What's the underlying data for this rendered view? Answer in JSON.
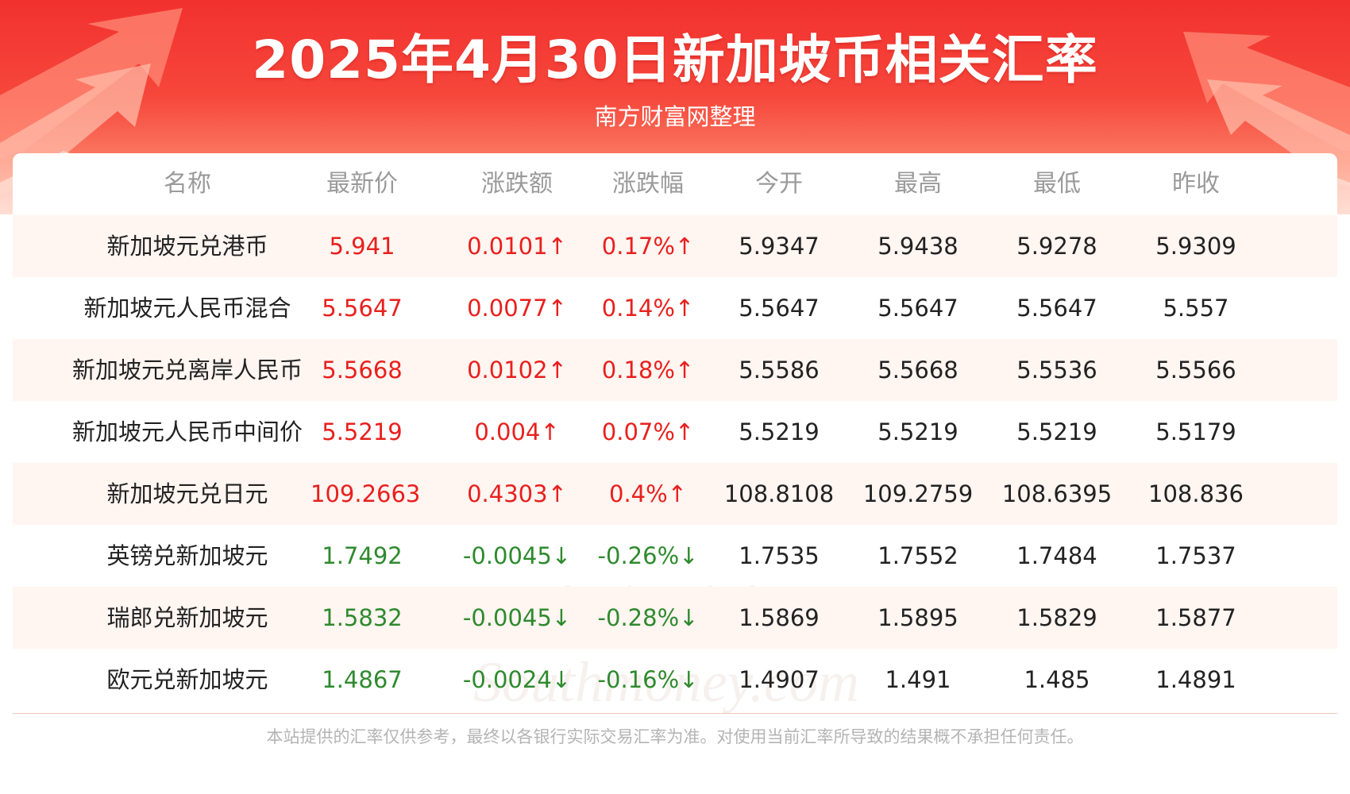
{
  "header": {
    "title": "2025年4月30日新加坡币相关汇率",
    "subtitle": "南方财富网整理"
  },
  "table": {
    "columns": [
      "名称",
      "最新价",
      "涨跌额",
      "涨跌幅",
      "今开",
      "最高",
      "最低",
      "昨收"
    ],
    "rows": [
      {
        "name": "新加坡元兑港币",
        "latest": "5.941",
        "change": "0.0101↑",
        "pct": "0.17%↑",
        "open": "5.9347",
        "high": "5.9438",
        "low": "5.9278",
        "prev": "5.9309",
        "trend": "up"
      },
      {
        "name": "新加坡元人民币混合",
        "latest": "5.5647",
        "change": "0.0077↑",
        "pct": "0.14%↑",
        "open": "5.5647",
        "high": "5.5647",
        "low": "5.5647",
        "prev": "5.557",
        "trend": "up"
      },
      {
        "name": "新加坡元兑离岸人民币",
        "latest": "5.5668",
        "change": "0.0102↑",
        "pct": "0.18%↑",
        "open": "5.5586",
        "high": "5.5668",
        "low": "5.5536",
        "prev": "5.5566",
        "trend": "up"
      },
      {
        "name": "新加坡元人民币中间价",
        "latest": "5.5219",
        "change": "0.004↑",
        "pct": "0.07%↑",
        "open": "5.5219",
        "high": "5.5219",
        "low": "5.5219",
        "prev": "5.5179",
        "trend": "up"
      },
      {
        "name": "新加坡元兑日元",
        "latest": "109.2663",
        "change": "0.4303↑",
        "pct": "0.4%↑",
        "open": "108.8108",
        "high": "109.2759",
        "low": "108.6395",
        "prev": "108.836",
        "trend": "up"
      },
      {
        "name": "英镑兑新加坡元",
        "latest": "1.7492",
        "change": "-0.0045↓",
        "pct": "-0.26%↓",
        "open": "1.7535",
        "high": "1.7552",
        "low": "1.7484",
        "prev": "1.7537",
        "trend": "down"
      },
      {
        "name": "瑞郎兑新加坡元",
        "latest": "1.5832",
        "change": "-0.0045↓",
        "pct": "-0.28%↓",
        "open": "1.5869",
        "high": "1.5895",
        "low": "1.5829",
        "prev": "1.5877",
        "trend": "down"
      },
      {
        "name": "欧元兑新加坡元",
        "latest": "1.4867",
        "change": "-0.0024↓",
        "pct": "-0.16%↓",
        "open": "1.4907",
        "high": "1.491",
        "low": "1.485",
        "prev": "1.4891",
        "trend": "down"
      }
    ]
  },
  "watermark": {
    "line1": "南方财富网",
    "line2": "Southmoney.com"
  },
  "footer": {
    "disclaimer": "本站提供的汇率仅供参考，最终以各银行实际交易汇率为准。对使用当前汇率所导致的结果概不承担任何责任。"
  },
  "colors": {
    "up": "#e8201e",
    "down": "#2e8a2e",
    "banner": "#f2312f"
  }
}
